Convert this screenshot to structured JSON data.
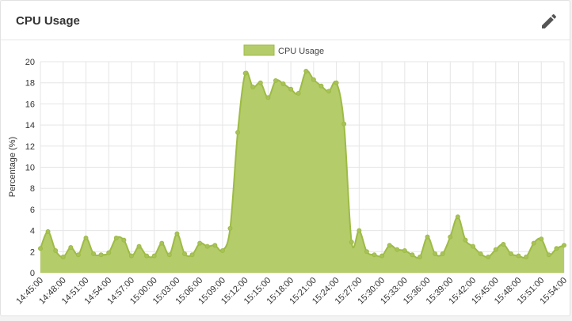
{
  "card": {
    "title": "CPU Usage"
  },
  "icons": {
    "edit": "pencil-icon"
  },
  "colors": {
    "fill": "#b5cc6a",
    "stroke": "#9dbb45",
    "point": "#a8c25a",
    "grid": "#e5e5e5",
    "text": "#333333"
  },
  "chart_data": {
    "type": "area",
    "title": "",
    "xlabel": "",
    "ylabel": "Percentage (%)",
    "ylim": [
      0,
      20
    ],
    "yticks": [
      0,
      2,
      4,
      6,
      8,
      10,
      12,
      14,
      16,
      18,
      20
    ],
    "legend": {
      "position": "top-center"
    },
    "grid": true,
    "x_tick_labels": [
      "14:45:00",
      "14:48:00",
      "14:51:00",
      "14:54:00",
      "14:57:00",
      "15:00:00",
      "15:03:00",
      "15:06:00",
      "15:09:00",
      "15:12:00",
      "15:15:00",
      "15:18:00",
      "15:21:00",
      "15:24:00",
      "15:27:00",
      "15:30:00",
      "15:33:00",
      "15:36:00",
      "15:39:00",
      "15:42:00",
      "15:45:00",
      "15:48:00",
      "15:51:00",
      "15:54:00"
    ],
    "x_start": "14:45:00",
    "x_interval_seconds": 60,
    "series": [
      {
        "name": "CPU Usage",
        "values": [
          2.3,
          3.9,
          2.1,
          1.5,
          2.4,
          1.7,
          3.3,
          1.8,
          1.7,
          1.9,
          3.3,
          3.1,
          1.6,
          2.5,
          1.6,
          1.6,
          2.8,
          1.7,
          3.7,
          1.8,
          1.7,
          2.8,
          2.5,
          2.6,
          2.1,
          4.2,
          13.3,
          18.9,
          17.6,
          18.0,
          16.6,
          18.2,
          17.9,
          17.4,
          17.0,
          19.1,
          18.3,
          17.7,
          17.2,
          18.0,
          14.1,
          2.9,
          4.0,
          2.0,
          1.7,
          1.6,
          2.6,
          2.2,
          2.1,
          1.7,
          1.5,
          3.4,
          1.8,
          1.8,
          3.4,
          5.3,
          3.1,
          2.5,
          1.8,
          1.5,
          2.2,
          2.7,
          1.8,
          1.6,
          1.5,
          2.8,
          3.2,
          1.7,
          2.3,
          2.6
        ]
      }
    ]
  }
}
